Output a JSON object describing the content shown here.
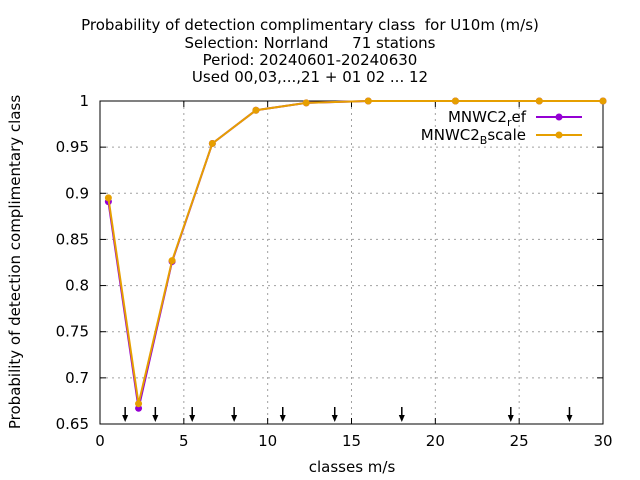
{
  "chart_data": {
    "type": "line",
    "title_lines": [
      "Probability of detection complimentary class  for U10m (m/s)",
      "Selection: Norrland     71 stations",
      "Period: 20240601-20240630",
      "Used 00,03,...,21 + 01 02 ... 12"
    ],
    "xlabel": "classes m/s",
    "ylabel": "Probability of detection complimentary class",
    "xlim": [
      0,
      30
    ],
    "ylim": [
      0.65,
      1
    ],
    "x_ticks": [
      0,
      5,
      10,
      15,
      20,
      25,
      30
    ],
    "y_ticks": [
      0.65,
      0.7,
      0.75,
      0.8,
      0.85,
      0.9,
      0.95,
      1
    ],
    "y_tick_labels": [
      "0.65",
      "0.7",
      "0.75",
      "0.8",
      "0.85",
      "0.9",
      "0.95",
      "1"
    ],
    "grid": true,
    "legend_position": "top-right",
    "series": [
      {
        "name_main": "MNWC2",
        "name_sub": "r",
        "name_rest": "ef",
        "color": "#9400d3",
        "x": [
          0.5,
          2.3,
          4.3,
          6.7,
          9.3,
          12.3,
          16,
          21.2,
          26.2,
          30
        ],
        "y": [
          0.891,
          0.667,
          0.826,
          0.954,
          0.99,
          0.998,
          1.0,
          1.0,
          1.0,
          1.0
        ]
      },
      {
        "name_main": "MNWC2",
        "name_sub": "B",
        "name_rest": "scale",
        "color": "#e69f00",
        "x": [
          0.5,
          2.3,
          4.3,
          6.7,
          9.3,
          12.3,
          16,
          21.2,
          26.2,
          30
        ],
        "y": [
          0.895,
          0.672,
          0.827,
          0.954,
          0.99,
          0.998,
          1.0,
          1.0,
          1.0,
          1.0
        ]
      }
    ],
    "arrow_markers_x": [
      1.5,
      3.3,
      5.5,
      8,
      10.9,
      14,
      18,
      24.5,
      28
    ]
  }
}
